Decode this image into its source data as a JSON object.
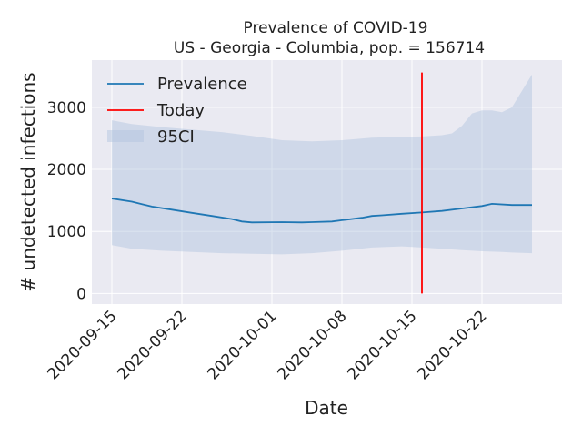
{
  "chart_data": {
    "type": "line",
    "title": "Prevalence of COVID-19",
    "subtitle": "US - Georgia - Columbia, pop. = 156714",
    "xlabel": "Date",
    "ylabel": "# undetected infections",
    "x_ticks": [
      "2020-09-15",
      "2020-09-22",
      "2020-10-01",
      "2020-10-08",
      "2020-10-15",
      "2020-10-22"
    ],
    "y_ticks": [
      0,
      1000,
      2000,
      3000
    ],
    "xlim": [
      "2020-09-13",
      "2020-10-30"
    ],
    "ylim": [
      -170,
      3760
    ],
    "grid": true,
    "legend_position": "top-left",
    "legend": [
      "Prevalence",
      "Today",
      "95CI"
    ],
    "colors": {
      "prevalence": "#1f77b4",
      "today": "#ff0000",
      "ci": "#b0c4de",
      "background": "#eaeaf2",
      "grid": "#ffffff"
    },
    "series": [
      {
        "name": "Prevalence",
        "x": [
          "2020-09-15",
          "2020-09-17",
          "2020-09-18",
          "2020-09-19",
          "2020-09-21",
          "2020-09-23",
          "2020-09-25",
          "2020-09-27",
          "2020-09-28",
          "2020-09-29",
          "2020-10-02",
          "2020-10-04",
          "2020-10-05",
          "2020-10-07",
          "2020-10-08",
          "2020-10-10",
          "2020-10-11",
          "2020-10-12",
          "2020-10-14",
          "2020-10-16",
          "2020-10-18",
          "2020-10-20",
          "2020-10-22",
          "2020-10-23",
          "2020-10-25",
          "2020-10-27"
        ],
        "values": [
          1530,
          1480,
          1440,
          1400,
          1350,
          1300,
          1250,
          1200,
          1160,
          1145,
          1150,
          1145,
          1150,
          1160,
          1180,
          1220,
          1250,
          1260,
          1285,
          1305,
          1330,
          1370,
          1410,
          1445,
          1425,
          1425
        ]
      }
    ],
    "ci_band": {
      "name": "95CI",
      "x": [
        "2020-09-15",
        "2020-09-17",
        "2020-09-20",
        "2020-09-23",
        "2020-09-26",
        "2020-09-29",
        "2020-10-02",
        "2020-10-05",
        "2020-10-08",
        "2020-10-11",
        "2020-10-14",
        "2020-10-16",
        "2020-10-18",
        "2020-10-19",
        "2020-10-20",
        "2020-10-21",
        "2020-10-22",
        "2020-10-23",
        "2020-10-24",
        "2020-10-25",
        "2020-10-27"
      ],
      "upper": [
        2790,
        2730,
        2680,
        2640,
        2600,
        2540,
        2470,
        2450,
        2470,
        2510,
        2525,
        2530,
        2550,
        2580,
        2700,
        2900,
        2950,
        2950,
        2920,
        3000,
        3530
      ],
      "lower": [
        780,
        720,
        690,
        670,
        650,
        640,
        630,
        650,
        690,
        740,
        760,
        740,
        720,
        710,
        700,
        690,
        680,
        675,
        670,
        660,
        650
      ]
    },
    "today": {
      "name": "Today",
      "x": "2020-10-16",
      "y_range": [
        0,
        3560
      ]
    }
  }
}
